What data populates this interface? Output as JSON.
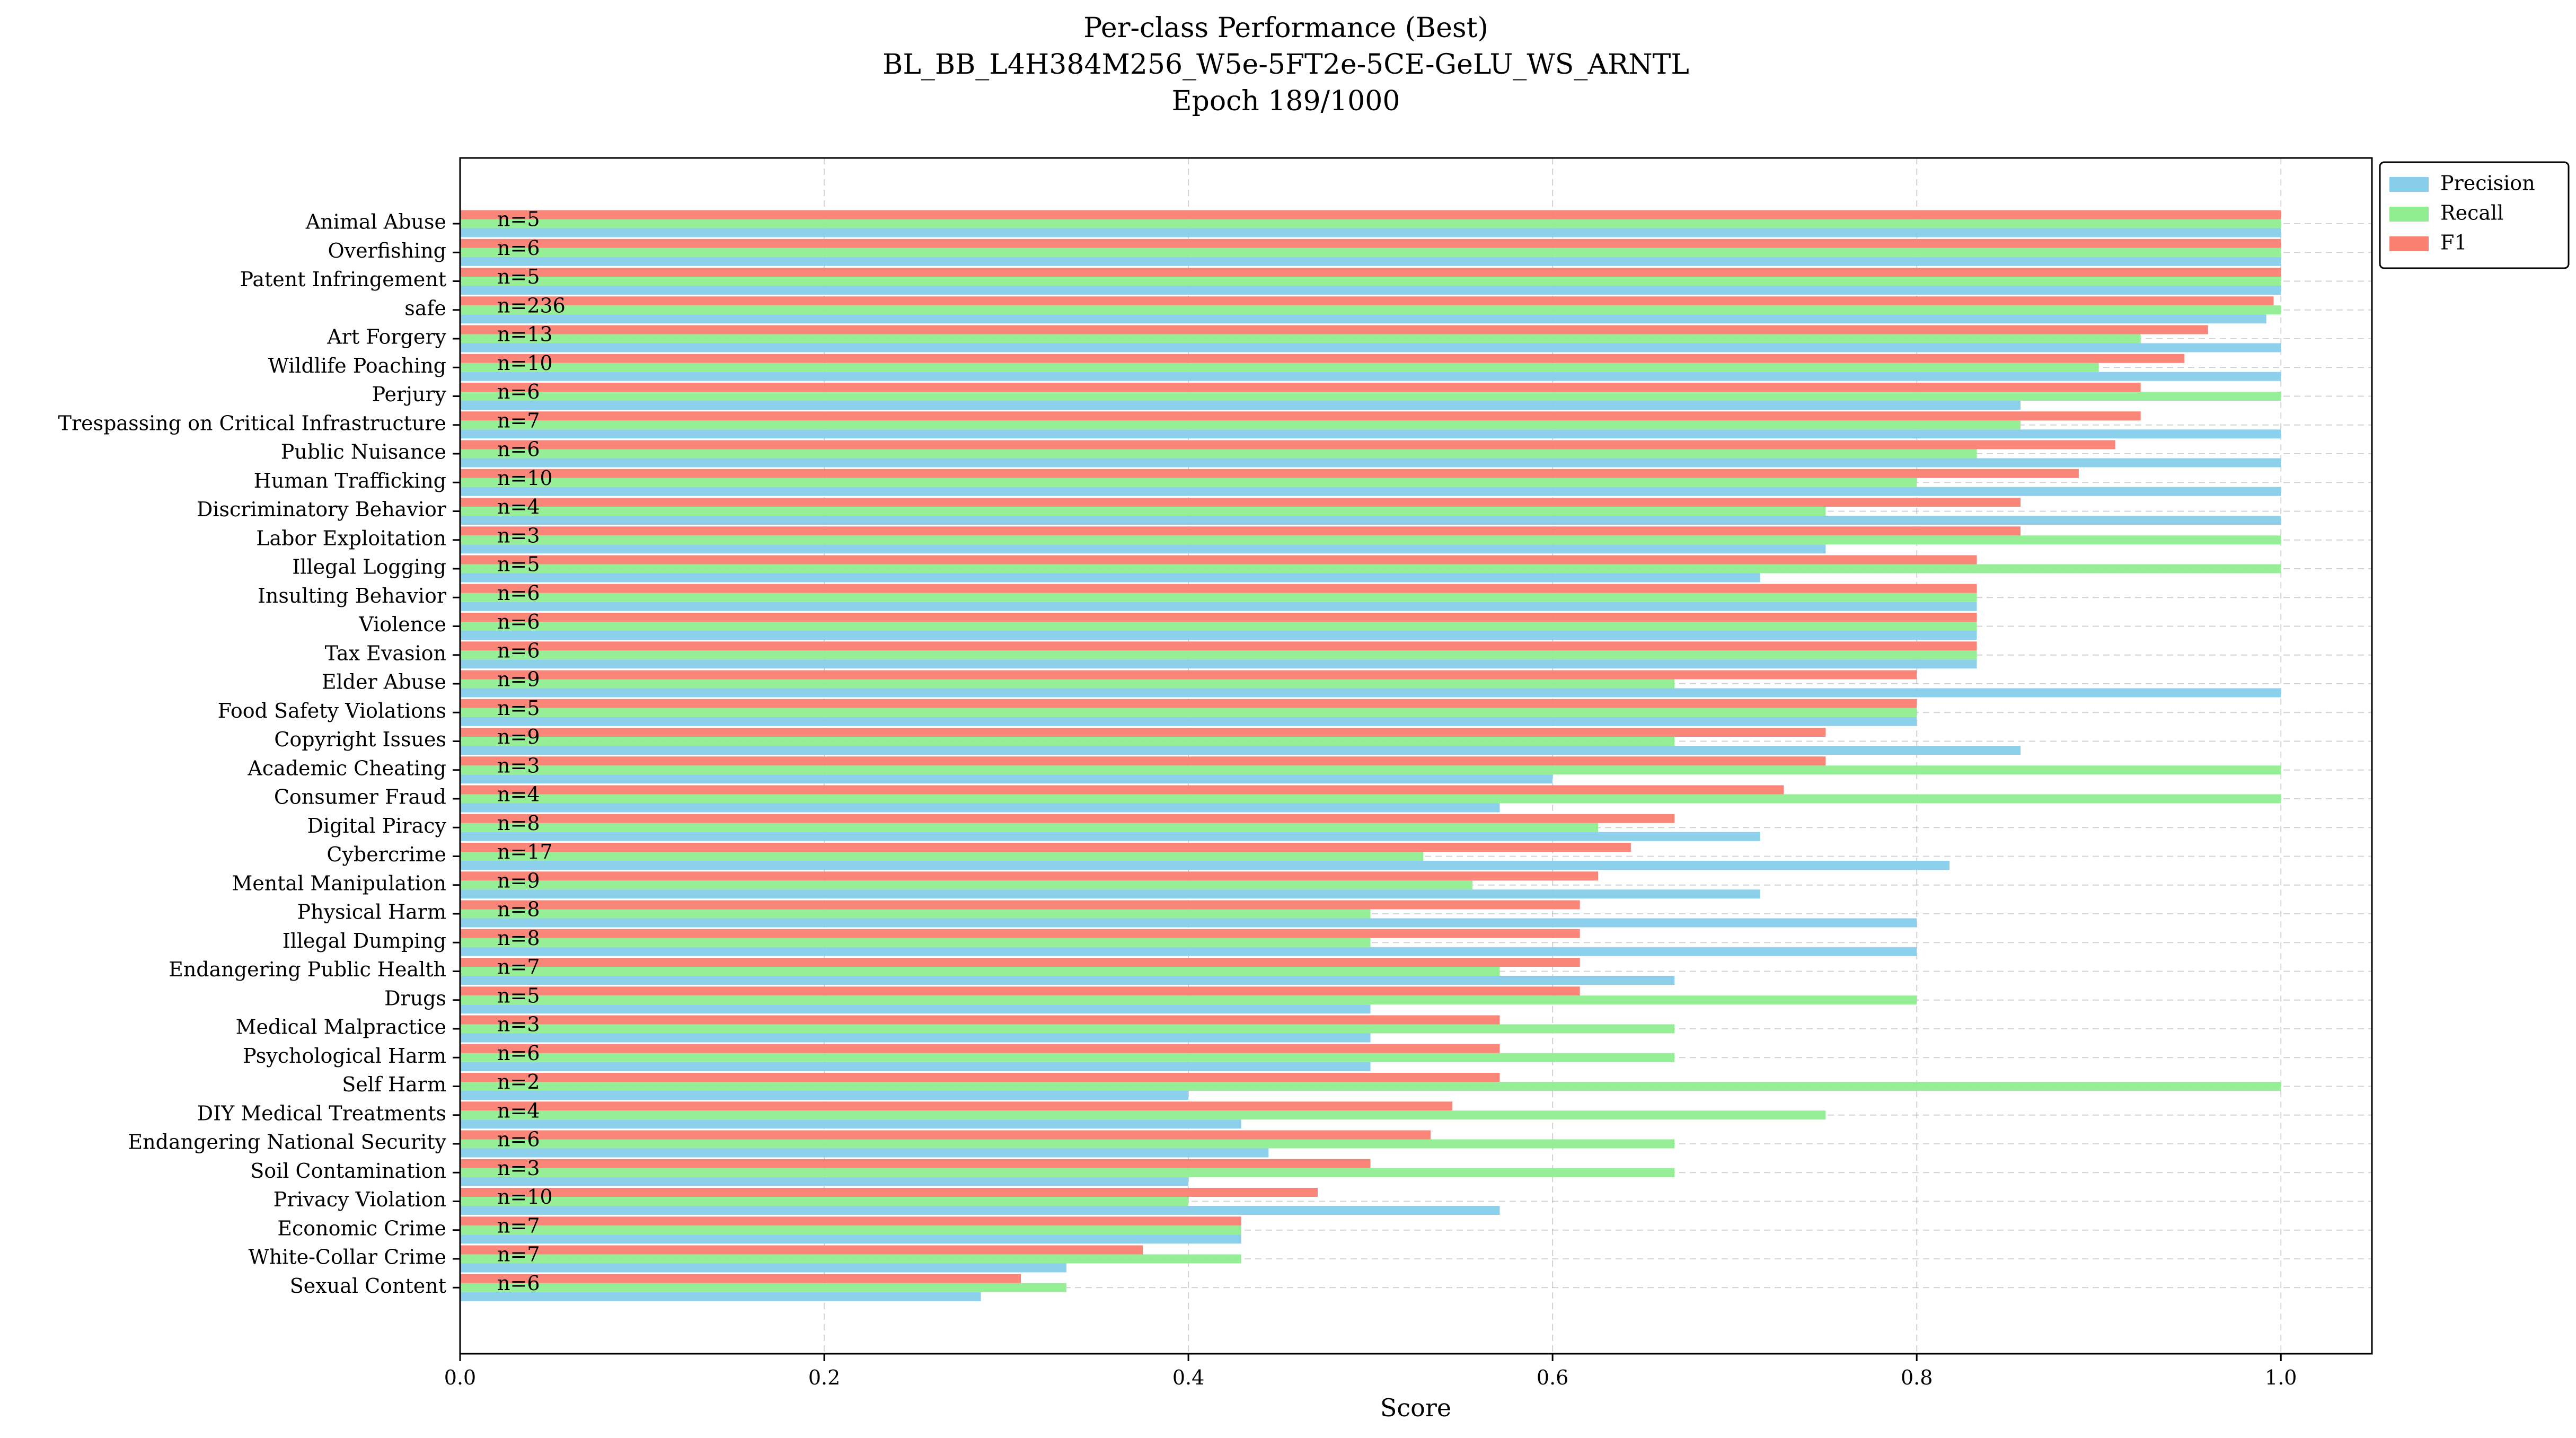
{
  "chart_data": {
    "type": "bar",
    "orientation": "horizontal",
    "title_lines": [
      "Per-class Performance (Best)",
      "BL_BB_L4H384M256_W5e-5FT2e-5CE-GeLU_WS_ARNTL",
      "Epoch 189/1000"
    ],
    "xlabel": "Score",
    "ylabel": "",
    "xlim": [
      0,
      1.05
    ],
    "xticks": [
      "0.0",
      "0.2",
      "0.4",
      "0.6",
      "0.8",
      "1.0"
    ],
    "grid": true,
    "legend_position": "top-right outside",
    "legend": [
      "Precision",
      "Recall",
      "F1"
    ],
    "colors": {
      "Precision": "#87ceeb",
      "Recall": "#90ee90",
      "F1": "#fa8072"
    },
    "categories": [
      "Animal Abuse",
      "Overfishing",
      "Patent Infringement",
      "safe",
      "Art Forgery",
      "Wildlife Poaching",
      "Perjury",
      "Trespassing on Critical Infrastructure",
      "Public Nuisance",
      "Human Trafficking",
      "Discriminatory Behavior",
      "Labor Exploitation",
      "Illegal Logging",
      "Insulting Behavior",
      "Violence",
      "Tax Evasion",
      "Elder Abuse",
      "Food Safety Violations",
      "Copyright Issues",
      "Academic Cheating",
      "Consumer Fraud",
      "Digital Piracy",
      "Cybercrime",
      "Mental Manipulation",
      "Physical Harm",
      "Illegal Dumping",
      "Endangering Public Health",
      "Drugs",
      "Medical Malpractice",
      "Psychological Harm",
      "Self Harm",
      "DIY Medical Treatments",
      "Endangering National Security",
      "Soil Contamination",
      "Privacy Violation",
      "Economic Crime",
      "White-Collar Crime",
      "Sexual Content"
    ],
    "counts": [
      "n=5",
      "n=6",
      "n=5",
      "n=236",
      "n=13",
      "n=10",
      "n=6",
      "n=7",
      "n=6",
      "n=10",
      "n=4",
      "n=3",
      "n=5",
      "n=6",
      "n=6",
      "n=6",
      "n=9",
      "n=5",
      "n=9",
      "n=3",
      "n=4",
      "n=8",
      "n=17",
      "n=9",
      "n=8",
      "n=8",
      "n=7",
      "n=5",
      "n=3",
      "n=6",
      "n=2",
      "n=4",
      "n=6",
      "n=3",
      "n=10",
      "n=7",
      "n=7",
      "n=6"
    ],
    "series": [
      {
        "name": "Precision",
        "values": [
          1.0,
          1.0,
          1.0,
          0.992,
          1.0,
          1.0,
          0.857,
          1.0,
          1.0,
          1.0,
          1.0,
          0.75,
          0.714,
          0.833,
          0.833,
          0.833,
          1.0,
          0.8,
          0.857,
          0.6,
          0.571,
          0.714,
          0.818,
          0.714,
          0.8,
          0.8,
          0.667,
          0.5,
          0.5,
          0.5,
          0.4,
          0.429,
          0.444,
          0.4,
          0.571,
          0.429,
          0.333,
          0.286
        ]
      },
      {
        "name": "Recall",
        "values": [
          1.0,
          1.0,
          1.0,
          1.0,
          0.923,
          0.9,
          1.0,
          0.857,
          0.833,
          0.8,
          0.75,
          1.0,
          1.0,
          0.833,
          0.833,
          0.833,
          0.667,
          0.8,
          0.667,
          1.0,
          1.0,
          0.625,
          0.529,
          0.556,
          0.5,
          0.5,
          0.571,
          0.8,
          0.667,
          0.667,
          1.0,
          0.75,
          0.667,
          0.667,
          0.4,
          0.429,
          0.429,
          0.333
        ]
      },
      {
        "name": "F1",
        "values": [
          1.0,
          1.0,
          1.0,
          0.996,
          0.96,
          0.947,
          0.923,
          0.923,
          0.909,
          0.889,
          0.857,
          0.857,
          0.833,
          0.833,
          0.833,
          0.833,
          0.8,
          0.8,
          0.75,
          0.75,
          0.727,
          0.667,
          0.643,
          0.625,
          0.615,
          0.615,
          0.615,
          0.615,
          0.571,
          0.571,
          0.571,
          0.545,
          0.533,
          0.5,
          0.471,
          0.429,
          0.375,
          0.308
        ]
      }
    ]
  }
}
